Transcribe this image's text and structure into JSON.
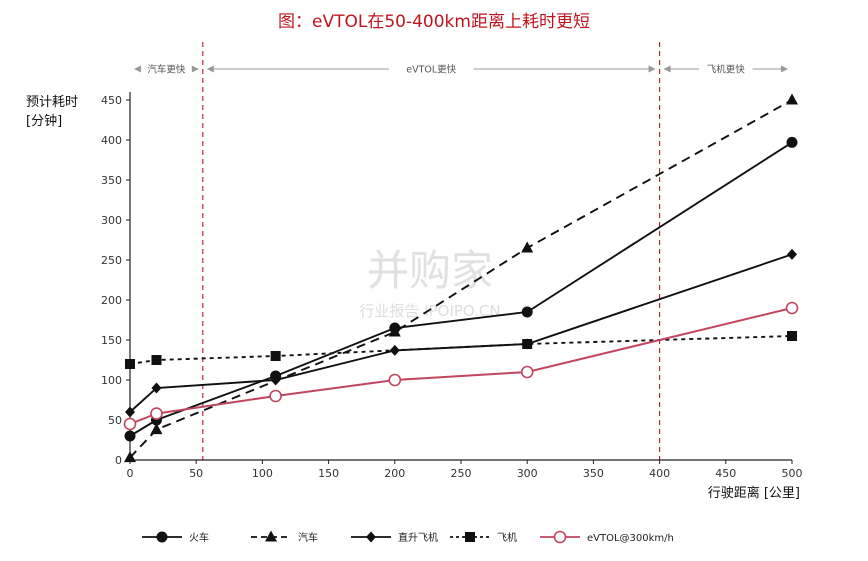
{
  "title": "图：eVTOL在50-400km距离上耗时更短",
  "watermark": {
    "main": "并购家",
    "sub": "行业报告 IPOIPO.CN"
  },
  "chart_data": {
    "type": "line",
    "xlabel": "行驶距离 [公里]",
    "ylabel_line1": "预计耗时",
    "ylabel_line2": "[分钟]",
    "xlim": [
      0,
      500
    ],
    "ylim": [
      0,
      450
    ],
    "xticks": [
      0,
      50,
      100,
      150,
      200,
      250,
      300,
      350,
      400,
      450,
      500
    ],
    "yticks": [
      0,
      50,
      100,
      150,
      200,
      250,
      300,
      350,
      400,
      450
    ],
    "zones": [
      {
        "label": "汽车更快",
        "from": 0,
        "to": 55
      },
      {
        "label": "eVTOL更快",
        "from": 55,
        "to": 400
      },
      {
        "label": "飞机更快",
        "from": 400,
        "to": 500
      }
    ],
    "boundaries": [
      55,
      400
    ],
    "series": [
      {
        "name": "火车",
        "color": "#111111",
        "dash": "solid",
        "marker": "circle",
        "points": [
          [
            0,
            30
          ],
          [
            20,
            50
          ],
          [
            110,
            105
          ],
          [
            200,
            165
          ],
          [
            300,
            185
          ],
          [
            500,
            397
          ]
        ]
      },
      {
        "name": "汽车",
        "color": "#111111",
        "dash": "long",
        "marker": "triangle",
        "points": [
          [
            0,
            3
          ],
          [
            20,
            38
          ],
          [
            200,
            160
          ],
          [
            300,
            265
          ],
          [
            500,
            450
          ]
        ]
      },
      {
        "name": "直升飞机",
        "color": "#111111",
        "dash": "solid",
        "marker": "diamond",
        "points": [
          [
            0,
            60
          ],
          [
            20,
            90
          ],
          [
            110,
            100
          ],
          [
            200,
            137
          ],
          [
            300,
            145
          ],
          [
            500,
            257
          ]
        ]
      },
      {
        "name": "飞机",
        "color": "#111111",
        "dash": "short",
        "marker": "square",
        "points": [
          [
            0,
            120
          ],
          [
            20,
            125
          ],
          [
            110,
            130
          ],
          [
            300,
            145
          ],
          [
            500,
            155
          ]
        ]
      },
      {
        "name": "eVTOL@300km/h",
        "color": "#c2465e",
        "dash": "solid",
        "marker": "open-circle",
        "points": [
          [
            0,
            45
          ],
          [
            20,
            58
          ],
          [
            110,
            80
          ],
          [
            200,
            100
          ],
          [
            300,
            110
          ],
          [
            500,
            190
          ]
        ]
      }
    ]
  }
}
